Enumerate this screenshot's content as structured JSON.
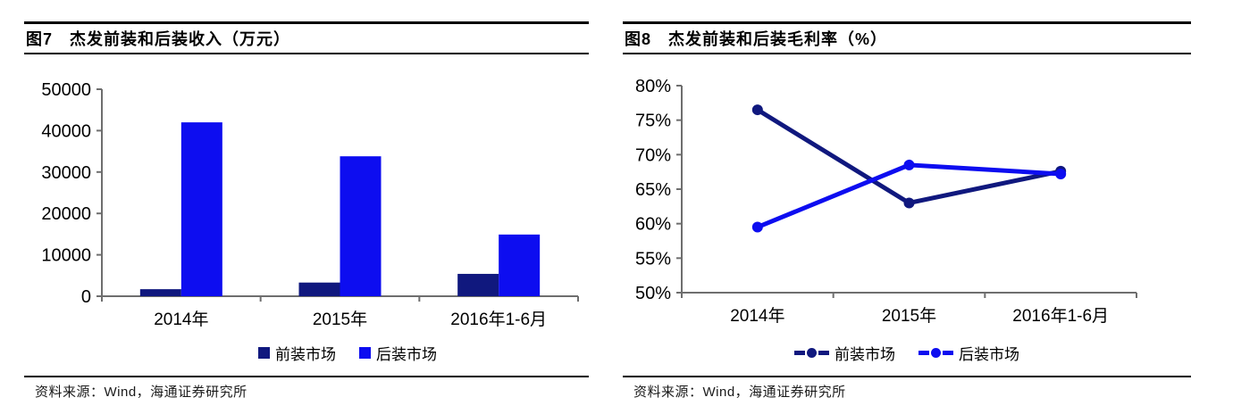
{
  "figures": [
    {
      "label": "图7",
      "title": "图7　杰发前装和后装收入（万元）",
      "source": "资料来源：Wind，海通证券研究所"
    },
    {
      "label": "图8",
      "title": "图8　杰发前装和后装毛利率（%）",
      "source": "资料来源：Wind，海通证券研究所"
    }
  ],
  "chart_data": [
    {
      "type": "bar",
      "title": "杰发前装和后装收入（万元）",
      "categories": [
        "2014年",
        "2015年",
        "2016年1-6月"
      ],
      "series": [
        {
          "name": "前装市场",
          "color": "#10187e",
          "values": [
            1700,
            3300,
            5400
          ]
        },
        {
          "name": "后装市场",
          "color": "#0d0df0",
          "values": [
            42000,
            33800,
            14900
          ]
        }
      ],
      "ylim": [
        0,
        50000
      ],
      "ytick_step": 10000,
      "ytick_format": "number",
      "legend_position": "bottom",
      "grid": false
    },
    {
      "type": "line",
      "title": "杰发前装和后装毛利率（%）",
      "categories": [
        "2014年",
        "2015年",
        "2016年1-6月"
      ],
      "series": [
        {
          "name": "前装市场",
          "color": "#10187e",
          "values": [
            76.5,
            63.0,
            67.6
          ]
        },
        {
          "name": "后装市场",
          "color": "#0d0df0",
          "values": [
            59.5,
            68.5,
            67.2
          ]
        }
      ],
      "ylim": [
        50,
        80
      ],
      "ytick_step": 5,
      "ytick_format": "percent",
      "legend_position": "bottom",
      "grid": false
    }
  ]
}
